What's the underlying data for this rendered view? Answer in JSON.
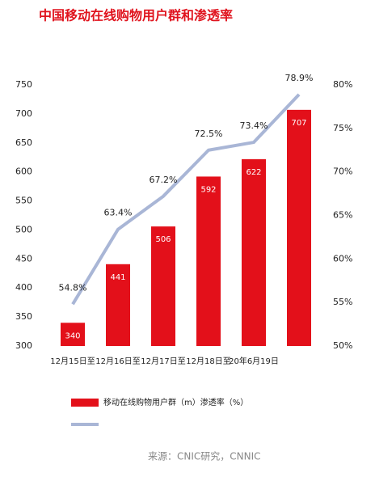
{
  "chart_data": {
    "type": "bar_line",
    "title": "中国移动在线购物用户群和渗透率",
    "categories": [
      "12月15日至",
      "12月16日至",
      "12月17日至",
      "12月18日至",
      "20年6月19日",
      null
    ],
    "series": [
      {
        "name": "移动在线购物用户群（m）渗透率（%）",
        "type": "bar",
        "color": "#e3101a",
        "values": [
          340,
          441,
          506,
          592,
          622,
          707
        ]
      },
      {
        "type": "line",
        "axis": "y2",
        "color": "#a9b6d6",
        "values": [
          54.8,
          63.4,
          67.2,
          72.5,
          73.4,
          78.9
        ],
        "value_labels": [
          "54.8%",
          "63.4%",
          "67.2%",
          "72.5%",
          "73.4%",
          "78.9%"
        ]
      }
    ],
    "ylim": [
      300,
      750
    ],
    "yticks": [
      300,
      350,
      400,
      450,
      500,
      550,
      600,
      650,
      700,
      750
    ],
    "y2lim": [
      50,
      80
    ],
    "y2ticks": [
      {
        "value": 50,
        "label": "50%"
      },
      {
        "value": 55,
        "label": "55%"
      },
      {
        "value": 60,
        "label": "60%"
      },
      {
        "value": 65,
        "label": "65%"
      },
      {
        "value": 70,
        "label": "70%"
      },
      {
        "value": 75,
        "label": "75%"
      },
      {
        "value": 80,
        "label": "80%"
      }
    ],
    "source": "来源：CNIC研究，CNNIC"
  }
}
